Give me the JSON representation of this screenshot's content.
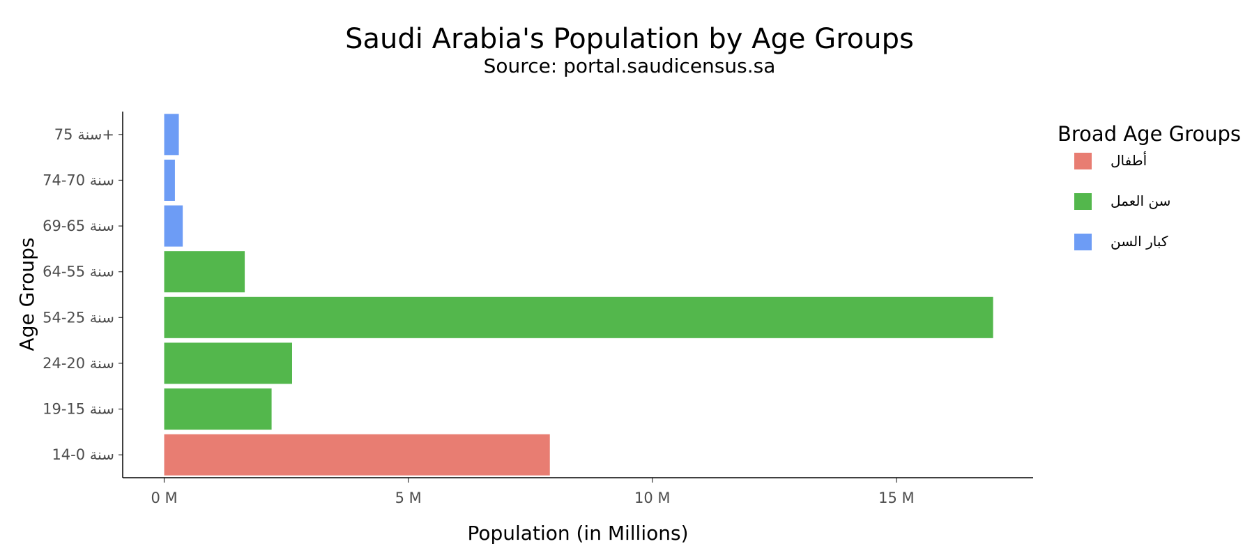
{
  "chart_data": {
    "type": "bar",
    "orientation": "horizontal",
    "title": "Saudi Arabia's Population by Age Groups",
    "subtitle": "Source: portal.saudicensus.sa",
    "xlabel": "Population (in Millions)",
    "ylabel": "Age Groups",
    "xlim": [
      -0.85,
      17.8
    ],
    "x_ticks": [
      0,
      5,
      10,
      15
    ],
    "x_tick_labels": [
      "0 M",
      "5 M",
      "10 M",
      "15 M"
    ],
    "categories": [
      "سنة 0-14",
      "سنة 15-19",
      "سنة 20-24",
      "سنة 25-54",
      "سنة 55-64",
      "سنة 65-69",
      "سنة 70-74",
      "سنة 75+"
    ],
    "values": [
      7.9,
      2.2,
      2.62,
      16.98,
      1.65,
      0.38,
      0.22,
      0.3
    ],
    "groups": [
      "أطفال",
      "سن العمل",
      "سن العمل",
      "سن العمل",
      "سن العمل",
      "كبار السن",
      "كبار السن",
      "كبار السن"
    ],
    "legend": {
      "title": "Broad Age Groups",
      "position": "right",
      "entries": [
        {
          "name": "أطفال",
          "color": "#E87D72"
        },
        {
          "name": "سن العمل",
          "color": "#53B74C"
        },
        {
          "name": "كبار السن",
          "color": "#6D9CF5"
        }
      ]
    },
    "grid": false
  }
}
